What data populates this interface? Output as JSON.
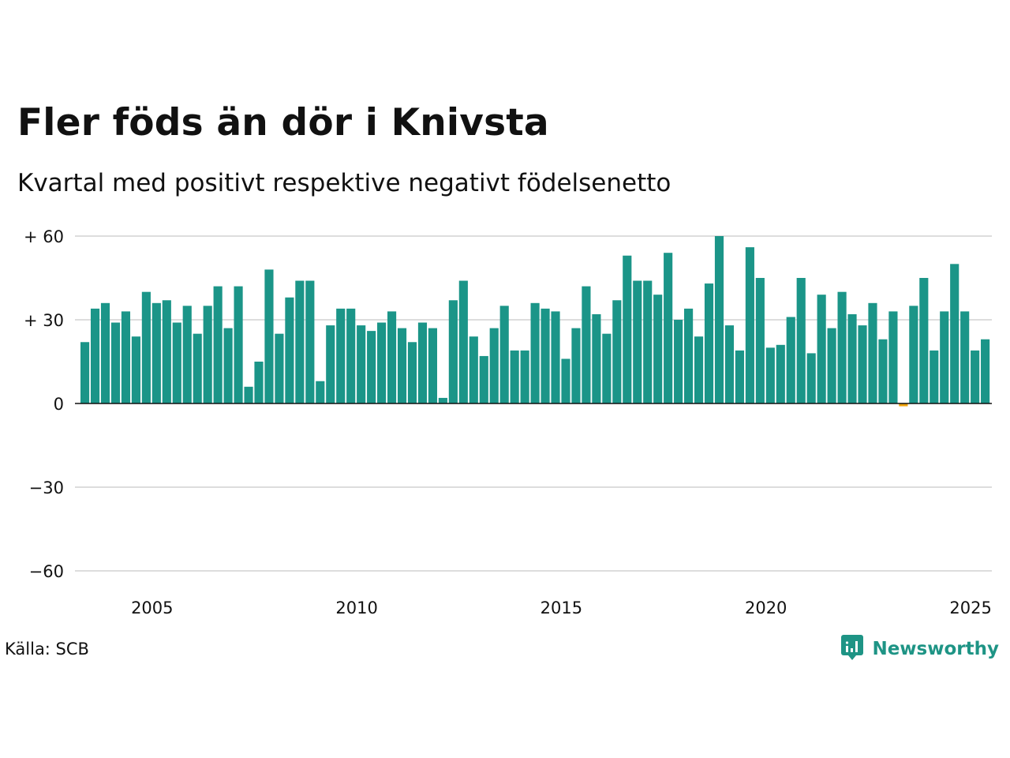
{
  "header": {
    "title": "Fler föds än dör i Knivsta",
    "subtitle": "Kvartal med positivt respektive negativt födelsenetto"
  },
  "footer": {
    "source": "Källa: SCB",
    "brand": "Newsworthy",
    "brand_icon": "bar-chart-speech-bubble-icon"
  },
  "colors": {
    "positive": "#1b9588",
    "negative": "#f0a30a",
    "grid": "#dddddd",
    "baseline": "#111111",
    "brand": "#1e9485"
  },
  "chart_data": {
    "type": "bar",
    "title": "Fler föds än dör i Knivsta",
    "subtitle": "Kvartal med positivt respektive negativt födelsenetto",
    "xlabel": "",
    "ylabel": "",
    "ylim": [
      -60,
      60
    ],
    "yticks": [
      {
        "value": 60,
        "label": "+ 60"
      },
      {
        "value": 30,
        "label": "+ 30"
      },
      {
        "value": 0,
        "label": "0"
      },
      {
        "value": -30,
        "label": "−30"
      },
      {
        "value": -60,
        "label": "−60"
      }
    ],
    "xticks": [
      "2005",
      "2010",
      "2015",
      "2020",
      "2025"
    ],
    "start": "2003-Q2",
    "grid": true,
    "legend": "none",
    "values": [
      22,
      34,
      36,
      29,
      33,
      24,
      40,
      36,
      37,
      29,
      35,
      25,
      35,
      42,
      27,
      42,
      6,
      15,
      48,
      25,
      38,
      44,
      44,
      8,
      28,
      34,
      34,
      28,
      26,
      29,
      33,
      27,
      22,
      29,
      27,
      2,
      37,
      44,
      24,
      17,
      27,
      35,
      19,
      19,
      36,
      34,
      33,
      16,
      27,
      42,
      32,
      25,
      37,
      53,
      44,
      44,
      39,
      54,
      30,
      34,
      24,
      43,
      60,
      28,
      19,
      56,
      45,
      20,
      21,
      31,
      45,
      18,
      39,
      27,
      40,
      32,
      28,
      36,
      23,
      33,
      -1,
      35,
      45,
      19,
      33,
      50,
      33,
      19,
      23
    ]
  }
}
